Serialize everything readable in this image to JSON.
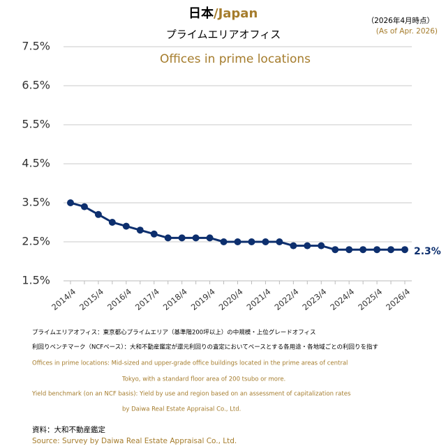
{
  "chart_data": {
    "type": "line",
    "title": "日本",
    "title_suffix": "/Japan",
    "subtitle": "プライムエリアオフィス",
    "inner_title": "Offices in prime locations",
    "date_note_ja": "（2026年4月時点）",
    "date_note_en": "(As of Apr. 2026)",
    "categories": [
      "2014/4",
      null,
      "2015/4",
      null,
      "2016/4",
      null,
      "2017/4",
      null,
      "2018/4",
      null,
      "2019/4",
      null,
      "2020/4",
      null,
      "2021/4",
      null,
      "2022/4",
      null,
      "2023/4",
      null,
      "2024/4",
      null,
      "2025/4",
      null,
      "2026/4"
    ],
    "series": [
      {
        "name": "Offices in prime locations",
        "color": "#0d2f6e",
        "values": [
          3.5,
          3.4,
          3.2,
          3.0,
          2.9,
          2.8,
          2.7,
          2.6,
          2.6,
          2.6,
          2.6,
          2.5,
          2.5,
          2.5,
          2.5,
          2.5,
          2.4,
          2.4,
          2.4,
          2.3,
          2.3,
          2.3,
          2.3,
          2.3,
          2.3
        ],
        "value_labels": [
          null,
          null,
          null,
          null,
          null,
          null,
          null,
          null,
          null,
          null,
          null,
          null,
          null,
          null,
          null,
          null,
          null,
          null,
          null,
          null,
          null,
          null,
          null,
          null,
          "2.3%"
        ]
      }
    ],
    "ylim": [
      1.5,
      7.5
    ],
    "yticks": [
      {
        "value": 1.5,
        "label": "1.5%"
      },
      {
        "value": 2.5,
        "label": "2.5%"
      },
      {
        "value": 3.5,
        "label": "3.5%"
      },
      {
        "value": 4.5,
        "label": "4.5%"
      },
      {
        "value": 5.5,
        "label": "5.5%"
      },
      {
        "value": 6.5,
        "label": "6.5%"
      },
      {
        "value": 7.5,
        "label": "7.5%"
      }
    ],
    "grid": true,
    "notes": [
      "プライムエリアオフィス：東京都心プライムエリア（基準階200坪以上）の中規模・上位グレードオフィス",
      "利回りベンチマーク（NCFベース）：大和不動産鑑定が還元利回りの査定においてベースとする各用途・各地域ごとの利回りを指す"
    ],
    "notes_en": [
      "Offices in prime locations: Mid-sized and upper-grade office buildings located in the prime areas of central",
      "Tokyo, with a standard floor area of 200 tsubo or more.",
      "Yield benchmark (on an NCF basis): Yield by use and region based on an assessment of capitalization rates",
      "by Daiwa Real Estate Appraisal Co., Ltd."
    ],
    "source_ja": "資料：大和不動産鑑定",
    "source_en": "Source: Survey by Daiwa Real Estate Appraisal Co., Ltd."
  }
}
